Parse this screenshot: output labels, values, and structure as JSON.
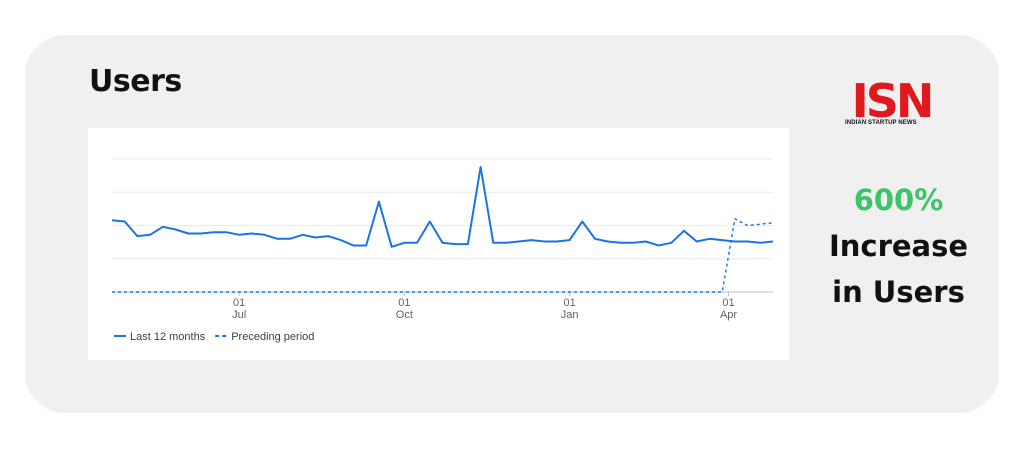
{
  "title": "Users",
  "logo": {
    "text": "ISN",
    "tagline": "INDIAN STARTUP NEWS",
    "color": "#e0191f"
  },
  "stat": {
    "value": "600%",
    "line1": "Increase",
    "line2": "in Users",
    "accent": "#3cc46a"
  },
  "chart_data": {
    "type": "line",
    "ylim": [
      0,
      100
    ],
    "xlim": [
      0,
      52
    ],
    "grid": true,
    "x_ticks": [
      {
        "x": 10,
        "day": "01",
        "month": "Jul"
      },
      {
        "x": 23,
        "day": "01",
        "month": "Oct"
      },
      {
        "x": 36,
        "day": "01",
        "month": "Jan"
      },
      {
        "x": 48.5,
        "day": "01",
        "month": "Apr"
      }
    ],
    "legend_position": "bottom-left",
    "series": [
      {
        "name": "Last 12 months",
        "style": "solid",
        "color": "#1a73e8",
        "x": [
          0,
          1,
          2,
          3,
          4,
          5,
          6,
          7,
          8,
          9,
          10,
          11,
          12,
          13,
          14,
          15,
          16,
          17,
          18,
          19,
          20,
          21,
          22,
          23,
          24,
          25,
          26,
          27,
          28,
          29,
          30,
          31,
          32,
          33,
          34,
          35,
          36,
          37,
          38,
          39,
          40,
          41,
          42,
          43,
          44,
          45,
          46,
          47,
          48,
          49,
          50,
          51,
          52
        ],
        "values": [
          54,
          53,
          42,
          43,
          49,
          47,
          44,
          44,
          45,
          45,
          43,
          44,
          43,
          40,
          40,
          43,
          41,
          42,
          39,
          35,
          35,
          68,
          34,
          37,
          37,
          53,
          37,
          36,
          36,
          94,
          37,
          37,
          38,
          39,
          38,
          38,
          39,
          53,
          40,
          38,
          37,
          37,
          38,
          35,
          37,
          46,
          38,
          40,
          39,
          38,
          38,
          37,
          38
        ]
      },
      {
        "name": "Preceding period",
        "style": "dashed",
        "color": "#1a73e8",
        "x": [
          0,
          48,
          49,
          50,
          51,
          52
        ],
        "values": [
          0,
          0,
          55,
          50,
          51,
          52
        ]
      }
    ]
  }
}
